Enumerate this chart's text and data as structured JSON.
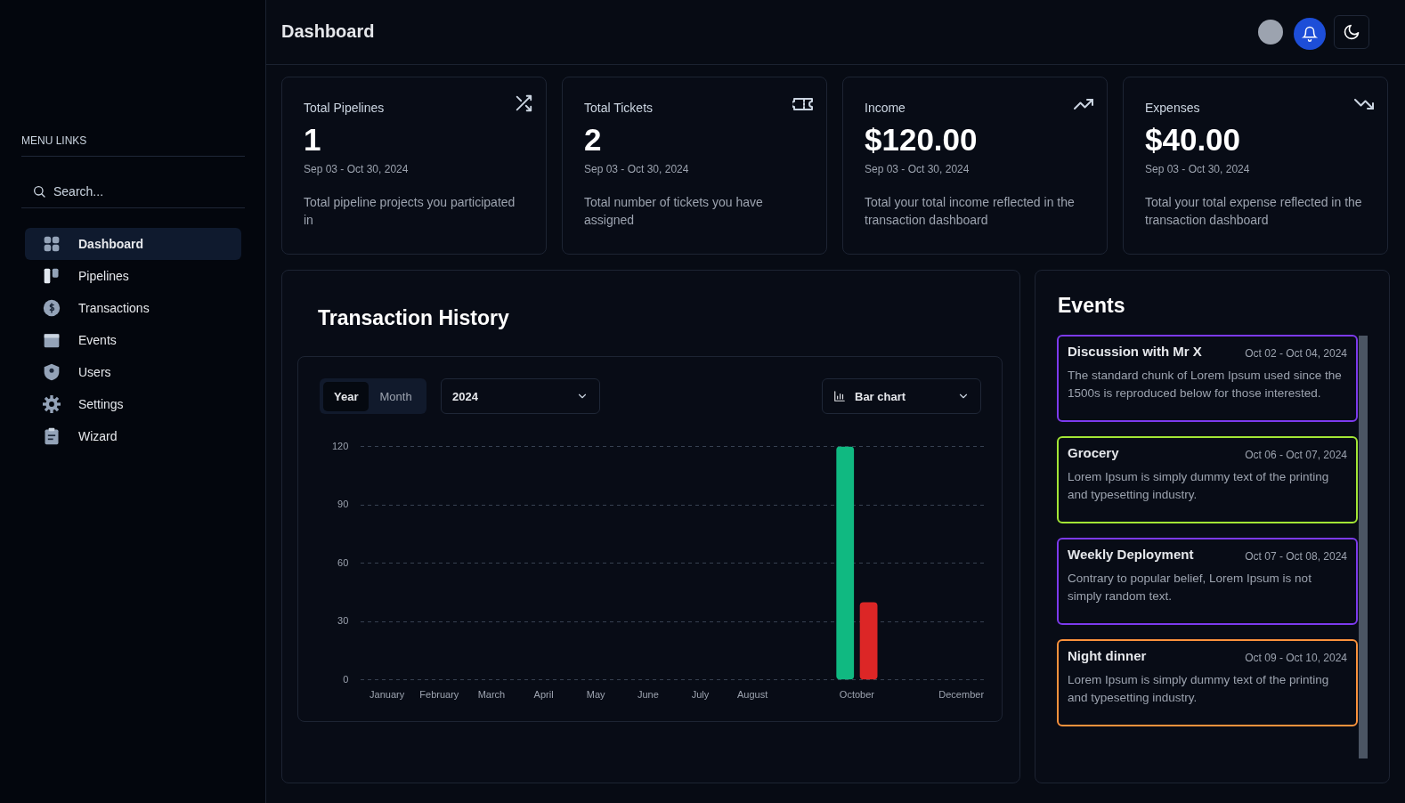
{
  "chart_data": [
    {
      "type": "other",
      "title": "Dashboard",
      "annotations": [
        "MENU LINKS",
        "Search...",
        "Dashboard",
        "Pipelines",
        "Transactions",
        "Events",
        "Users",
        "Settings",
        "Wizard"
      ]
    },
    {
      "type": "other",
      "title": "Total Pipelines",
      "annotations": [
        "1",
        "Sep 03 - Oct 30, 2024",
        "Total pipeline projects you participated in"
      ]
    },
    {
      "type": "other",
      "title": "Total Tickets",
      "annotations": [
        "2",
        "Sep 03 - Oct 30, 2024",
        "Total number of tickets you have assigned"
      ]
    },
    {
      "type": "other",
      "title": "Income",
      "annotations": [
        "$120.00",
        "Sep 03 - Oct 30, 2024",
        "Total your total income reflected in the transaction dashboard"
      ]
    },
    {
      "type": "other",
      "title": "Expenses",
      "annotations": [
        "$40.00",
        "Sep 03 - Oct 30, 2024",
        "Total your total expense reflected in the transaction dashboard"
      ]
    },
    {
      "type": "bar",
      "title": "Transaction History",
      "categories": [
        "January",
        "February",
        "March",
        "April",
        "May",
        "June",
        "July",
        "August",
        null,
        "October",
        null,
        "December"
      ],
      "series": [
        {
          "color": "#10b981",
          "values": [
            0,
            0,
            0,
            0,
            0,
            0,
            0,
            0,
            0,
            120,
            0,
            0
          ]
        },
        {
          "color": "#dc2626",
          "values": [
            0,
            0,
            0,
            0,
            0,
            0,
            0,
            0,
            0,
            40,
            0,
            0
          ]
        }
      ],
      "ylim": [
        0,
        120
      ],
      "yticks": [
        0,
        30,
        60,
        90,
        120
      ],
      "grid": "y",
      "annotations": [
        "Year",
        "Month",
        "2024",
        "Bar chart"
      ]
    },
    {
      "type": "other",
      "title": "Events",
      "annotations": [
        "Discussion with Mr X",
        "Oct 02 - Oct 04, 2024",
        "The standard chunk of Lorem Ipsum used since the 1500s is reproduced below for those interested.",
        "Grocery",
        "Oct 06 - Oct 07, 2024",
        "Lorem Ipsum is simply dummy text of the printing and typesetting industry.",
        "Weekly Deployment",
        "Oct 07 - Oct 08, 2024",
        "Contrary to popular belief, Lorem Ipsum is not simply random text.",
        "Night dinner",
        "Oct 09 - Oct 10, 2024",
        "Lorem Ipsum is simply dummy text of the printing and typesetting industry."
      ]
    }
  ]
}
